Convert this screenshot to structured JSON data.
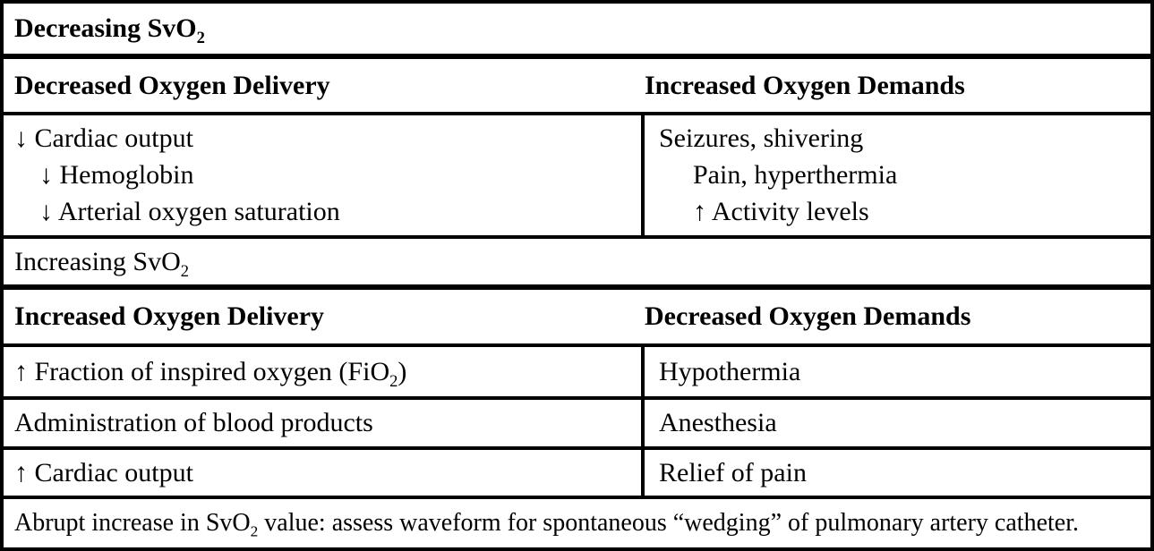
{
  "colors": {
    "border": "#000000",
    "background": "#ffffff",
    "text": "#000000"
  },
  "table": {
    "decreasing": {
      "banner": {
        "text": "Decreasing SvO",
        "sub": "2"
      },
      "left_header": "Decreased Oxygen Delivery",
      "right_header": "Increased Oxygen Demands",
      "left_items": [
        "↓ Cardiac output",
        "↓ Hemoglobin",
        "↓ Arterial oxygen saturation"
      ],
      "right_items": [
        "Seizures, shivering",
        "Pain, hyperthermia",
        "↑ Activity levels"
      ]
    },
    "increasing": {
      "banner": {
        "text": "Increasing SvO",
        "sub": "2"
      },
      "left_header": "Increased Oxygen Delivery",
      "right_header": "Decreased Oxygen Demands",
      "rows": [
        {
          "left": {
            "pre": "↑ Fraction of inspired oxygen (FiO",
            "sub": "2",
            "post": ")"
          },
          "right": "Hypothermia"
        },
        {
          "left": {
            "pre": "Administration of blood products",
            "sub": "",
            "post": ""
          },
          "right": "Anesthesia"
        },
        {
          "left": {
            "pre": "↑ Cardiac output",
            "sub": "",
            "post": ""
          },
          "right": "Relief of pain"
        }
      ]
    },
    "footer": {
      "pre": "Abrupt increase in SvO",
      "sub": "2",
      "post": " value: assess waveform for spontaneous “wedging” of pulmonary artery catheter."
    }
  }
}
